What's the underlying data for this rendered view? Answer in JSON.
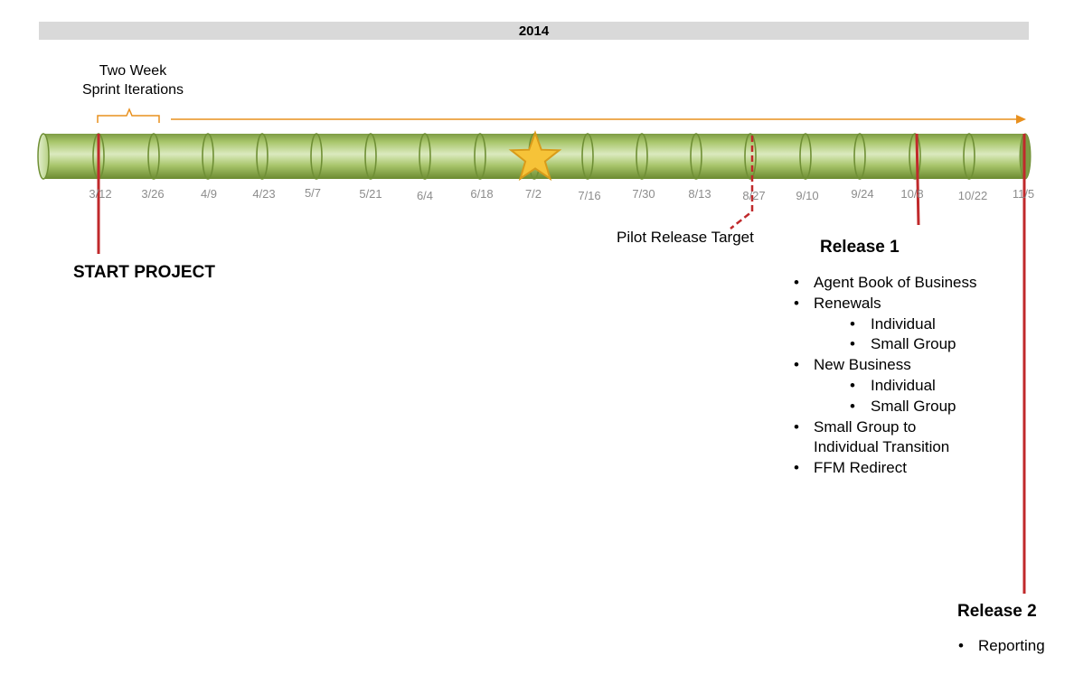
{
  "year": "2014",
  "sprint_label_line1": "Two Week",
  "sprint_label_line2": "Sprint Iterations",
  "dates": [
    "3/12",
    "3/26",
    "4/9",
    "4/23",
    "5/7",
    "5/21",
    "6/4",
    "6/18",
    "7/2",
    "7/16",
    "7/30",
    "8/13",
    "8/27",
    "9/10",
    "9/24",
    "10/8",
    "10/22",
    "11/5"
  ],
  "milestone_start": "START PROJECT",
  "milestone_pilot": "Pilot Release Target",
  "release1": {
    "title": "Release 1",
    "items": [
      {
        "text": "Agent Book of Business",
        "level": 1
      },
      {
        "text": "Renewals",
        "level": 1
      },
      {
        "text": "Individual",
        "level": 2
      },
      {
        "text": "Small Group",
        "level": 2
      },
      {
        "text": "New Business",
        "level": 1
      },
      {
        "text": "Individual",
        "level": 2
      },
      {
        "text": "Small Group",
        "level": 2
      },
      {
        "text": "Small Group to",
        "level": 1
      },
      {
        "text": "Individual Transition",
        "level": 0
      },
      {
        "text": "FFM Redirect",
        "level": 1
      }
    ]
  },
  "release2": {
    "title": "Release 2",
    "items": [
      {
        "text": "Reporting",
        "level": 1
      }
    ]
  },
  "colors": {
    "tube_green": "#9bbb59",
    "tube_edge": "#6f8f35",
    "milestone_red": "#c0292b",
    "arrow_orange": "#e8901e",
    "star_fill": "#f6c338",
    "star_edge": "#d89b1a",
    "year_bar": "#d9d9d9"
  }
}
